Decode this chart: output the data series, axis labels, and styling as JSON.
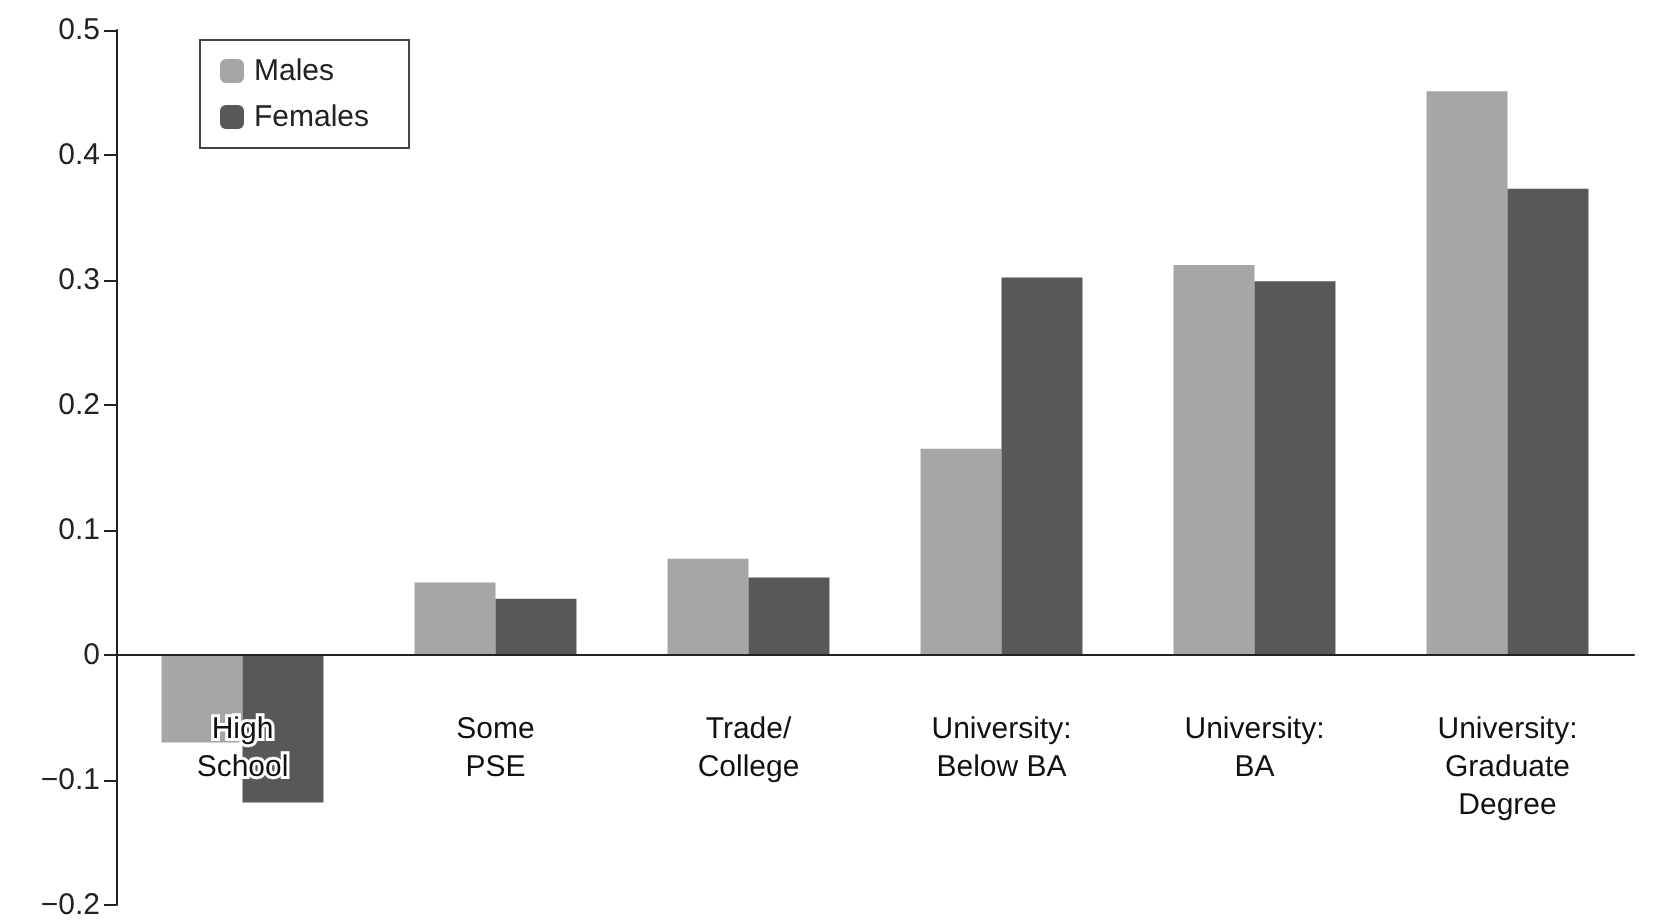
{
  "chart_data": {
    "type": "bar",
    "categories": [
      "High\nSchool",
      "Some\nPSE",
      "Trade/\nCollege",
      "University:\nBelow BA",
      "University:\nBA",
      "University:\nGraduate\nDegree"
    ],
    "series": [
      {
        "name": "Males",
        "color": "#a6a6a6",
        "values": [
          -0.07,
          0.058,
          0.077,
          0.165,
          0.312,
          0.451
        ]
      },
      {
        "name": "Females",
        "color": "#58585a",
        "values": [
          -0.118,
          0.045,
          0.062,
          0.302,
          0.299,
          0.373
        ]
      }
    ],
    "ylim": [
      -0.2,
      0.5
    ],
    "yticks": [
      {
        "value": -0.2,
        "label": "−0.2"
      },
      {
        "value": -0.1,
        "label": "−0.1"
      },
      0,
      0.1,
      0.2,
      0.3,
      0.4,
      0.5
    ],
    "grid": false,
    "legend": "top left"
  }
}
